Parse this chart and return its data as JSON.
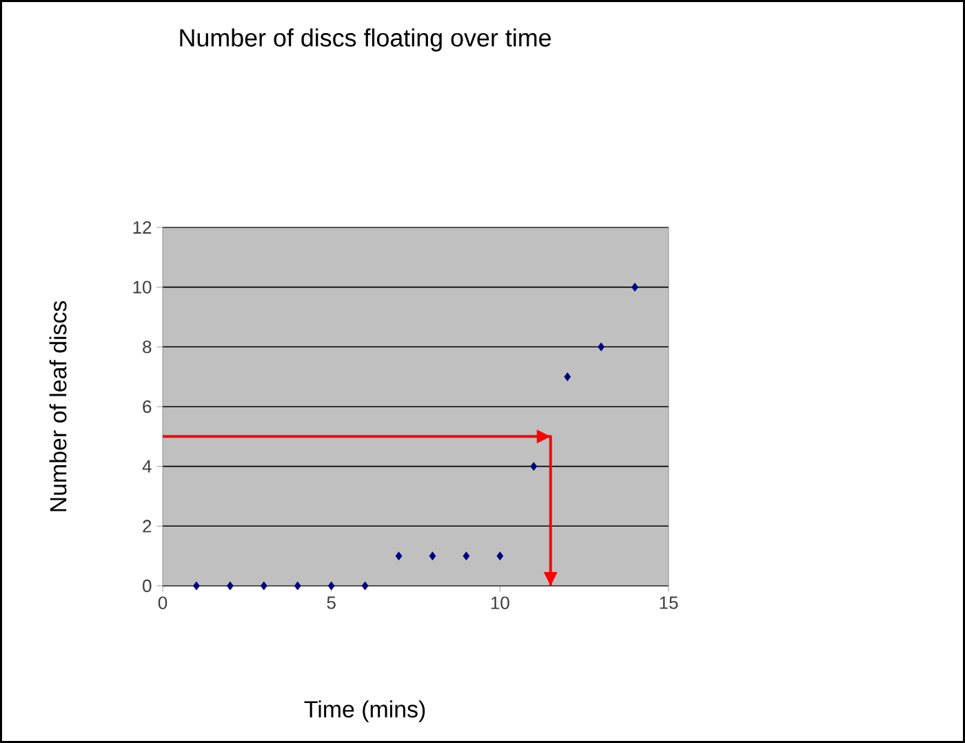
{
  "chart_data": {
    "type": "scatter",
    "title": "Number of discs floating over time",
    "xlabel": "Time (mins)",
    "ylabel": "Number of leaf discs",
    "xlim": [
      0,
      15
    ],
    "xticks": [
      0,
      5,
      10,
      15
    ],
    "ylim": [
      0,
      12
    ],
    "yticks": [
      0,
      2,
      4,
      6,
      8,
      10,
      12
    ],
    "grid": "y",
    "marker": "diamond",
    "series": [
      {
        "color": "#000080",
        "x": [
          1,
          2,
          3,
          4,
          5,
          6,
          7,
          8,
          9,
          10,
          11,
          12,
          13,
          14
        ],
        "values": [
          0,
          0,
          0,
          0,
          0,
          0,
          1,
          1,
          1,
          1,
          4,
          7,
          8,
          10
        ]
      },
      {
        "type": "line",
        "marker": "none",
        "color": "#ff0000",
        "x": [
          0,
          11.5,
          11.5
        ],
        "values": [
          5,
          5,
          0
        ]
      }
    ]
  }
}
